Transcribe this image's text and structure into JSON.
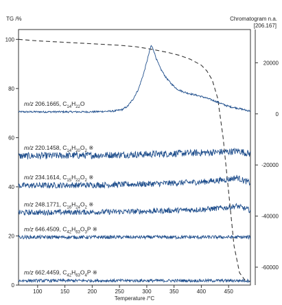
{
  "chart_data": {
    "type": "line",
    "left_axis": {
      "title": "TG /%",
      "range": [
        0,
        104
      ],
      "ticks": [
        0,
        20,
        40,
        60,
        80,
        100
      ],
      "tick_labels": [
        "0",
        "20",
        "40",
        "60",
        "80",
        "100"
      ]
    },
    "right_axis": {
      "title": "Chromatogram n.a.",
      "subtitle": "[206.167]",
      "range": [
        -67000,
        33000
      ],
      "ticks": [
        -60000,
        -40000,
        -20000,
        0,
        20000
      ],
      "tick_labels": [
        "-60000",
        "-40000",
        "-20000",
        "0",
        "20000"
      ]
    },
    "x_axis": {
      "title": "Temperature /°C",
      "range": [
        65,
        490
      ],
      "ticks": [
        100,
        150,
        200,
        250,
        300,
        350,
        400,
        450
      ],
      "tick_labels": [
        "100",
        "150",
        "200",
        "250",
        "300",
        "350",
        "400",
        "450"
      ]
    },
    "grid": false,
    "series": [
      {
        "kind": "tg",
        "style": "dashed",
        "color": "#333333",
        "x": [
          65,
          100,
          150,
          200,
          250,
          280,
          300,
          320,
          340,
          360,
          380,
          400,
          410,
          420,
          430,
          440,
          450,
          460,
          470,
          480,
          490
        ],
        "y": [
          100,
          99.4,
          98.8,
          98.2,
          97.6,
          97.0,
          96.3,
          95.5,
          94.6,
          93.5,
          91.9,
          89.5,
          87.2,
          83.5,
          76.0,
          60.0,
          38.0,
          16.0,
          5.0,
          2.0,
          1.5
        ]
      },
      {
        "label": {
          "mz": "m/z",
          "mass": " 206.1665, C",
          "formula": [
            {
              "t": "14",
              "sub": true
            },
            {
              "t": "H",
              "sub": false
            },
            {
              "t": "22",
              "sub": true
            },
            {
              "t": "O",
              "sub": false
            }
          ],
          "mark": ""
        },
        "baseline_tg": 70.5,
        "noise_tg": 0.35,
        "color": "#1f4e8c",
        "x": [
          65,
          100,
          150,
          200,
          240,
          255,
          265,
          275,
          285,
          295,
          303,
          308,
          312,
          318,
          325,
          335,
          345,
          355,
          365,
          375,
          385,
          395,
          405,
          415,
          425,
          435,
          445,
          455,
          465,
          475,
          485,
          490
        ],
        "y": [
          0,
          0,
          0,
          0,
          300,
          900,
          2200,
          5000,
          9000,
          15500,
          22000,
          26000,
          24500,
          20500,
          17000,
          13500,
          11000,
          9000,
          8000,
          7300,
          6800,
          6300,
          5700,
          5000,
          4200,
          3400,
          2500,
          1900,
          1500,
          1000,
          500,
          400
        ]
      },
      {
        "label": {
          "mz": "m/z",
          "mass": " 220.1458, C",
          "formula": [
            {
              "t": "14",
              "sub": true
            },
            {
              "t": "H",
              "sub": false
            },
            {
              "t": "20",
              "sub": true
            },
            {
              "t": "O",
              "sub": false
            },
            {
              "t": "2",
              "sub": true
            }
          ],
          "mark": " ※"
        },
        "baseline_tg": 52.5,
        "noise_tg": 1.4,
        "color": "#1f4e8c",
        "x": [
          65,
          200,
          300,
          400,
          450,
          470,
          480,
          490
        ],
        "y": [
          0,
          300,
          700,
          1300,
          1700,
          2000,
          1300,
          900
        ]
      },
      {
        "label": {
          "mz": "m/z",
          "mass": " 234.1614, C",
          "formula": [
            {
              "t": "15",
              "sub": true
            },
            {
              "t": "H",
              "sub": false
            },
            {
              "t": "22",
              "sub": true
            },
            {
              "t": "O",
              "sub": false
            },
            {
              "t": "2",
              "sub": true
            }
          ],
          "mark": " ※"
        },
        "baseline_tg": 40.5,
        "noise_tg": 1.2,
        "color": "#1f4e8c",
        "x": [
          65,
          200,
          300,
          400,
          450,
          465,
          475,
          485,
          490
        ],
        "y": [
          0,
          200,
          600,
          1400,
          2400,
          3200,
          2200,
          1400,
          1000
        ]
      },
      {
        "label": {
          "mz": "m/z",
          "mass": " 248.1771, C",
          "formula": [
            {
              "t": "16",
              "sub": true
            },
            {
              "t": "H",
              "sub": false
            },
            {
              "t": "24",
              "sub": true
            },
            {
              "t": "O",
              "sub": false
            },
            {
              "t": "2",
              "sub": true
            }
          ],
          "mark": " ※"
        },
        "baseline_tg": 29.5,
        "noise_tg": 1.1,
        "color": "#1f4e8c",
        "x": [
          65,
          200,
          300,
          400,
          450,
          465,
          475,
          485,
          490
        ],
        "y": [
          0,
          200,
          500,
          1200,
          2000,
          2600,
          1900,
          1200,
          900
        ]
      },
      {
        "label": {
          "mz": "m/z",
          "mass": " 646.4509, C",
          "formula": [
            {
              "t": "42",
              "sub": true
            },
            {
              "t": "H",
              "sub": false
            },
            {
              "t": "63",
              "sub": true
            },
            {
              "t": "O",
              "sub": false
            },
            {
              "t": "3",
              "sub": true
            },
            {
              "t": "P",
              "sub": false
            }
          ],
          "mark": " ※"
        },
        "baseline_tg": 19.5,
        "noise_tg": 0.7,
        "color": "#1f4e8c",
        "x": [
          65,
          300,
          450,
          490
        ],
        "y": [
          0,
          0,
          0,
          0
        ]
      },
      {
        "label": {
          "mz": "m/z",
          "mass": " 662.4459, C",
          "formula": [
            {
              "t": "42",
              "sub": true
            },
            {
              "t": "H",
              "sub": false
            },
            {
              "t": "63",
              "sub": true
            },
            {
              "t": "O",
              "sub": false
            },
            {
              "t": "4",
              "sub": true
            },
            {
              "t": "P",
              "sub": false
            }
          ],
          "mark": " ※"
        },
        "baseline_tg": 1.8,
        "noise_tg": 0.6,
        "color": "#1f4e8c",
        "x": [
          65,
          300,
          450,
          490
        ],
        "y": [
          0,
          0,
          0,
          0
        ]
      }
    ]
  }
}
